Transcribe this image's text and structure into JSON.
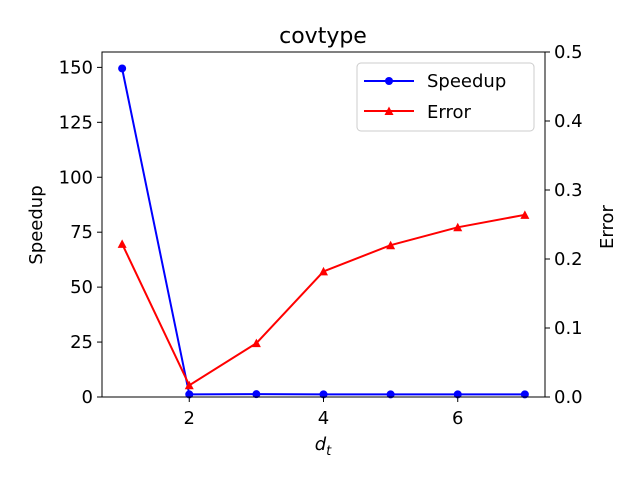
{
  "chart_data": {
    "type": "line",
    "title": "covtype",
    "xlabel_base": "d",
    "xlabel_sub": "t",
    "ylabel_left": "Speedup",
    "ylabel_right": "Error",
    "x": [
      1,
      2,
      3,
      4,
      5,
      6,
      7
    ],
    "xlim": [
      0.7,
      7.3
    ],
    "xticks": [
      2,
      4,
      6
    ],
    "ylim_left": [
      0,
      157
    ],
    "yticks_left": [
      0,
      25,
      50,
      75,
      100,
      125,
      150
    ],
    "ylim_right": [
      0,
      0.5
    ],
    "yticks_right": [
      "0.0",
      "0.1",
      "0.2",
      "0.3",
      "0.4",
      "0.5"
    ],
    "grid": false,
    "legend_position": "top-right",
    "series": [
      {
        "name": "Speedup",
        "axis": "left",
        "color": "#0000ff",
        "marker": "circle",
        "values": [
          149.5,
          1.2,
          1.3,
          1.2,
          1.2,
          1.2,
          1.2
        ]
      },
      {
        "name": "Error",
        "axis": "right",
        "color": "#ff0000",
        "marker": "triangle",
        "values": [
          0.222,
          0.017,
          0.078,
          0.182,
          0.22,
          0.246,
          0.264
        ]
      }
    ]
  }
}
